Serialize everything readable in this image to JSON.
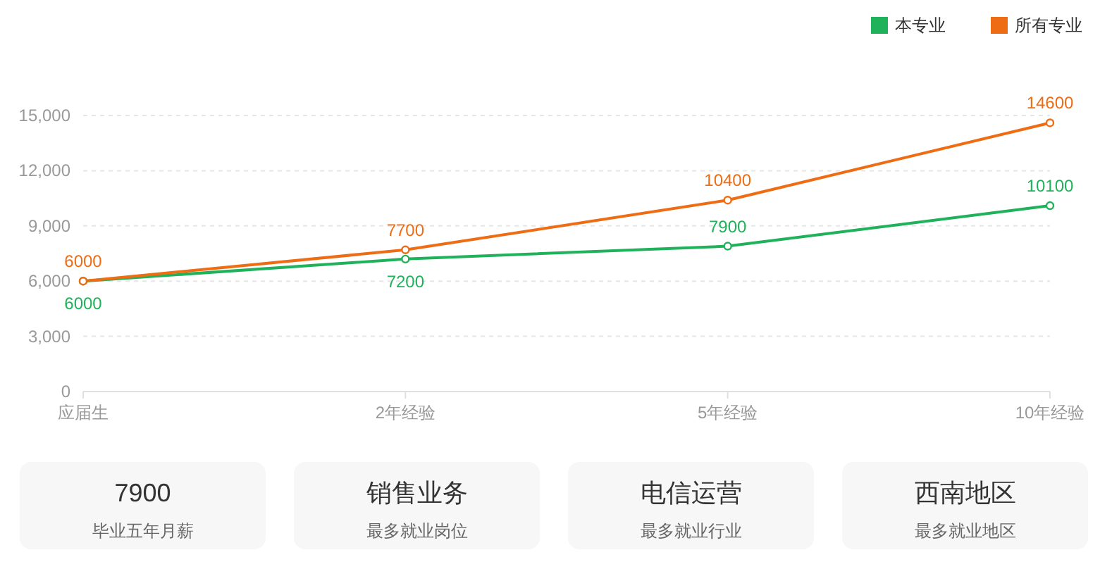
{
  "chart_data": [
    {
      "type": "line",
      "categories": [
        "应届生",
        "2年经验",
        "5年经验",
        "10年经验"
      ],
      "series": [
        {
          "name": "本专业",
          "color": "#1fb25a",
          "values": [
            6000,
            7200,
            7900,
            10100
          ]
        },
        {
          "name": "所有专业",
          "color": "#ee6c14",
          "values": [
            6000,
            7700,
            10400,
            14600
          ]
        }
      ],
      "ylim": [
        0,
        15000
      ],
      "yticks": [
        0,
        {
          "value": 3000,
          "label": "3,000"
        },
        {
          "value": 6000,
          "label": "6,000"
        },
        {
          "value": 9000,
          "label": "9,000"
        },
        {
          "value": 12000,
          "label": "12,000"
        },
        {
          "value": 15000,
          "label": "15,000"
        }
      ],
      "grid": "y",
      "legend": "top right",
      "marker": "circle",
      "data_labels": true
    },
    {
      "type": "other",
      "annotations": [
        "7900",
        "毕业五年月薪",
        "销售业务",
        "最多就业岗位",
        "电信运营",
        "最多就业行业",
        "西南地区",
        "最多就业地区"
      ]
    }
  ]
}
